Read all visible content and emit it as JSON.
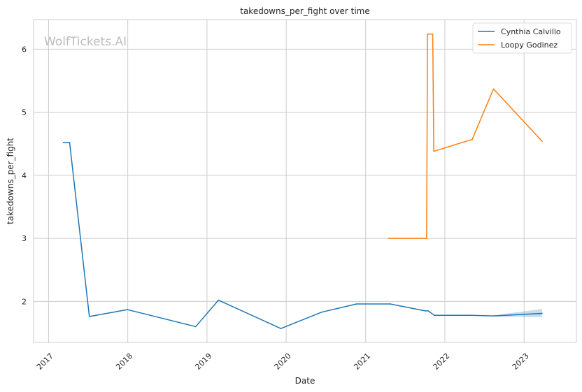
{
  "watermark": "WolfTickets.AI",
  "chart_data": {
    "type": "line",
    "title": "takedowns_per_fight over time",
    "xlabel": "Date",
    "ylabel": "takedowns_per_fight",
    "x_ticks": [
      "2017",
      "2018",
      "2019",
      "2020",
      "2021",
      "2022",
      "2023"
    ],
    "y_ticks": [
      2,
      3,
      4,
      5,
      6
    ],
    "xlim": [
      "2016-10-24",
      "2023-08-30"
    ],
    "ylim": [
      1.35,
      6.47
    ],
    "grid": true,
    "legend_position": "top-right",
    "series": [
      {
        "name": "Cynthia Calvillo",
        "color": "#1f77b4",
        "points": [
          [
            "2017-03-10",
            4.52
          ],
          [
            "2017-04-08",
            4.52
          ],
          [
            "2017-07-08",
            1.76
          ],
          [
            "2017-12-30",
            1.87
          ],
          [
            "2018-11-10",
            1.6
          ],
          [
            "2019-02-23",
            2.02
          ],
          [
            "2019-12-07",
            1.57
          ],
          [
            "2020-06-13",
            1.83
          ],
          [
            "2020-11-21",
            1.96
          ],
          [
            "2021-04-24",
            1.96
          ],
          [
            "2021-10-02",
            1.85
          ],
          [
            "2021-10-16",
            1.85
          ],
          [
            "2021-11-13",
            1.78
          ],
          [
            "2022-04-30",
            1.78
          ],
          [
            "2022-08-13",
            1.77
          ],
          [
            "2023-03-25",
            1.81
          ]
        ],
        "confidence_band": [
          [
            "2022-08-13",
            1.76,
            1.78
          ],
          [
            "2023-03-25",
            1.75,
            1.88
          ]
        ]
      },
      {
        "name": "Loopy Godinez",
        "color": "#ff7f0e",
        "points": [
          [
            "2021-04-17",
            3.0
          ],
          [
            "2021-10-09",
            3.0
          ],
          [
            "2021-10-13",
            6.24
          ],
          [
            "2021-11-06",
            6.24
          ],
          [
            "2021-11-11",
            4.38
          ],
          [
            "2022-05-07",
            4.57
          ],
          [
            "2022-08-13",
            5.37
          ],
          [
            "2023-03-25",
            4.54
          ]
        ]
      }
    ]
  }
}
